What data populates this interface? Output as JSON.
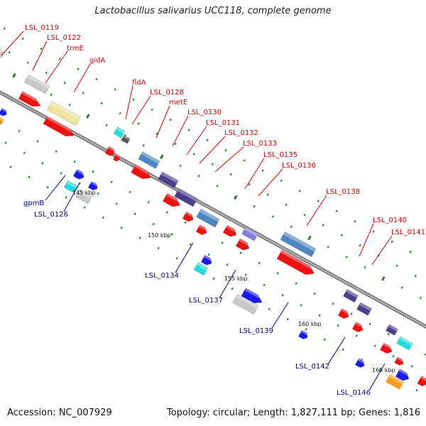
{
  "title": "Lactobacillus salivarius UCC118, complete genome",
  "footer": {
    "accession": "Accession: NC_007929",
    "summary": "Topology: circular; Length: 1,827,111 bp; Genes: 1,816"
  },
  "colors": {
    "backbone": "#8a8a8a",
    "tick": "#2a7d2a",
    "label_red": "#d40000",
    "label_blue": "#00008b",
    "cds_red": "#ee1111",
    "blue": "#1a1aee",
    "gray": "#c8c8c8",
    "yellow": "#eee49a",
    "cyan": "#22dddd",
    "steel": "#4d86c0",
    "slate": "#4a3f8a",
    "violet": "#8080dd",
    "orange": "#ff9c18",
    "darkgray": "#555555"
  },
  "scale_labels": [
    "145 kbp",
    "150 kbp",
    "155 kbp",
    "160 kbp",
    "165 kbp"
  ],
  "top_labels": [
    "LSL_0119",
    "LSL_0122",
    "trmE",
    "gidA",
    "fldA",
    "LSL_0128",
    "metE",
    "LSL_0130",
    "LSL_0131",
    "LSL_0132",
    "LSL_0133",
    "LSL_0135",
    "LSL_0136",
    "LSL_0138",
    "LSL_0140",
    "LSL_0141"
  ],
  "bottom_labels": [
    "gpmB",
    "LSL_0126",
    "LSL_0134",
    "LSL_0137",
    "LSL_0139",
    "LSL_0142",
    "LSL_0146"
  ]
}
